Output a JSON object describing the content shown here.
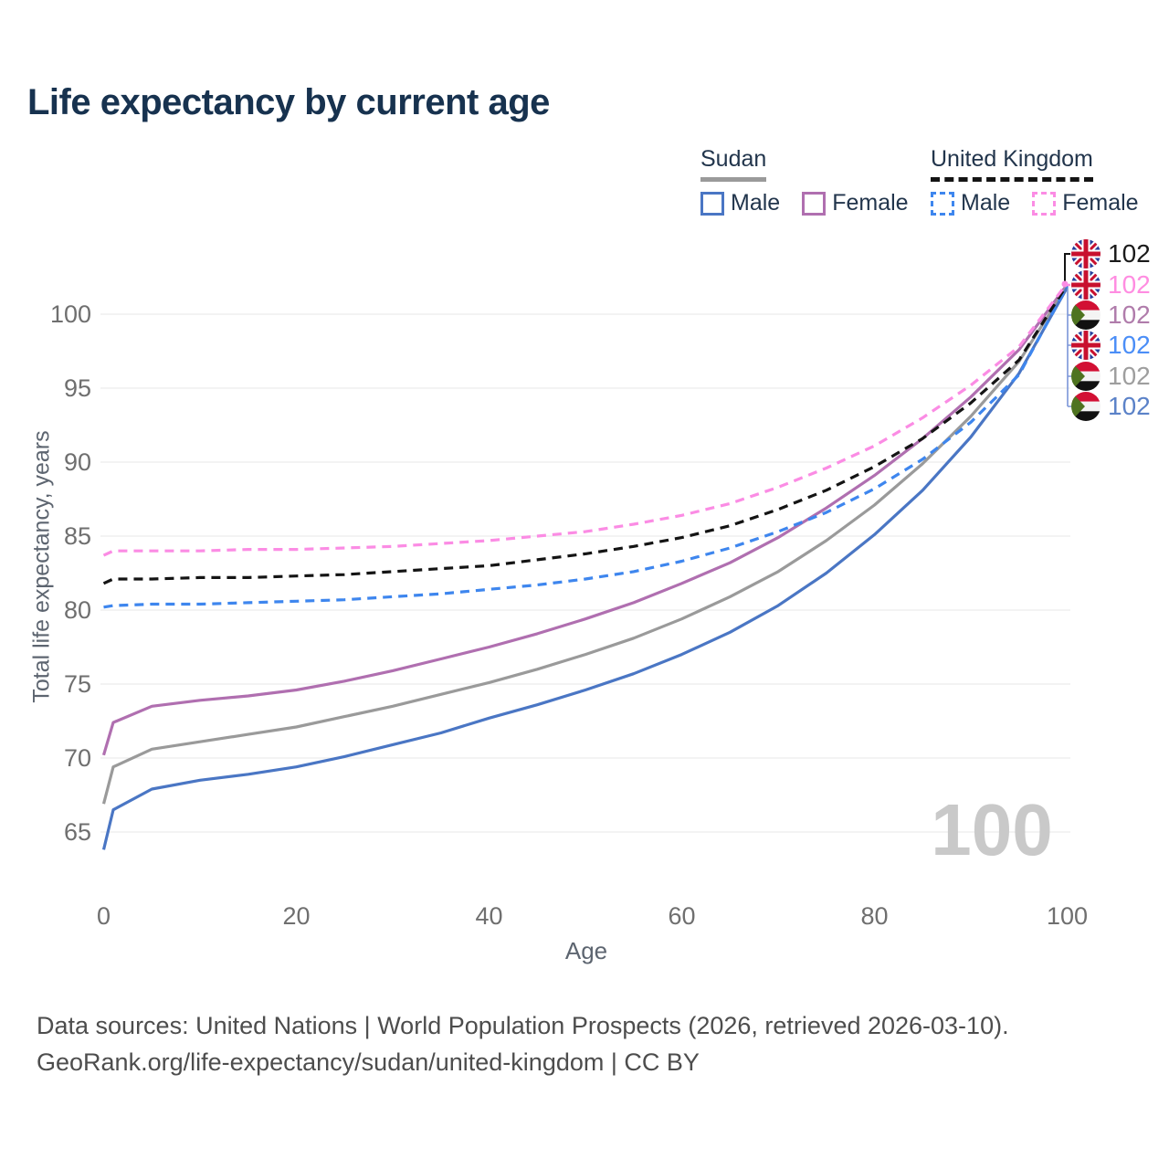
{
  "title": "Life expectancy by current age",
  "legend": {
    "groups": [
      {
        "name": "Sudan",
        "line_style": "solid",
        "underline_color": "#9a9a9a",
        "items": [
          {
            "label": "Male",
            "color": "#4a76c4"
          },
          {
            "label": "Female",
            "color": "#b06fb0"
          }
        ]
      },
      {
        "name": "United Kingdom",
        "line_style": "dashed",
        "underline_color": "#141414",
        "items": [
          {
            "label": "Male",
            "color": "#3e86ee"
          },
          {
            "label": "Female",
            "color": "#fb8ce4"
          }
        ]
      }
    ]
  },
  "watermark": "100",
  "footer": {
    "line1": "Data sources: United Nations | World Population Prospects (2026, retrieved 2026-03-10).",
    "line2": "GeoRank.org/life-expectancy/sudan/united-kingdom | CC BY"
  },
  "chart_data": {
    "type": "line",
    "title": "Life expectancy by current age",
    "xlabel": "Age",
    "ylabel": "Total life expectancy, years",
    "x_ticks": [
      0,
      20,
      40,
      60,
      80,
      100
    ],
    "y_ticks": [
      65,
      70,
      75,
      80,
      85,
      90,
      95,
      100
    ],
    "xlim": [
      0,
      100
    ],
    "ylim": [
      62,
      104
    ],
    "grid": "horizontal",
    "legend_position": "top-right",
    "x": [
      0,
      1,
      5,
      10,
      15,
      20,
      25,
      30,
      35,
      40,
      45,
      50,
      55,
      60,
      65,
      70,
      75,
      80,
      85,
      90,
      95,
      100
    ],
    "series": [
      {
        "name": "Sudan Female",
        "country": "Sudan",
        "sex": "female",
        "color": "#b06fb0",
        "dash": "solid",
        "values": [
          70.2,
          72.4,
          73.5,
          73.9,
          74.2,
          74.6,
          75.2,
          75.9,
          76.7,
          77.5,
          78.4,
          79.4,
          80.5,
          81.8,
          83.2,
          84.9,
          86.9,
          89.1,
          91.6,
          94.4,
          97.6,
          102.0
        ]
      },
      {
        "name": "Sudan Both sexes",
        "country": "Sudan",
        "sex": "both",
        "color": "#9a9a9a",
        "dash": "solid",
        "values": [
          66.9,
          69.4,
          70.6,
          71.1,
          71.6,
          72.1,
          72.8,
          73.5,
          74.3,
          75.1,
          76.0,
          77.0,
          78.1,
          79.4,
          80.9,
          82.6,
          84.7,
          87.1,
          89.9,
          93.1,
          96.8,
          101.9
        ]
      },
      {
        "name": "Sudan Male",
        "country": "Sudan",
        "sex": "male",
        "color": "#4a76c4",
        "dash": "solid",
        "values": [
          63.8,
          66.5,
          67.9,
          68.5,
          68.9,
          69.4,
          70.1,
          70.9,
          71.7,
          72.7,
          73.6,
          74.6,
          75.7,
          77.0,
          78.5,
          80.3,
          82.5,
          85.1,
          88.1,
          91.7,
          96.0,
          101.8
        ]
      },
      {
        "name": "United Kingdom Male",
        "country": "United Kingdom",
        "sex": "male",
        "color": "#3e86ee",
        "dash": "dashed",
        "values": [
          80.2,
          80.3,
          80.4,
          80.4,
          80.5,
          80.6,
          80.7,
          80.9,
          81.1,
          81.4,
          81.7,
          82.1,
          82.6,
          83.3,
          84.2,
          85.3,
          86.6,
          88.2,
          90.2,
          92.7,
          95.9,
          101.9
        ]
      },
      {
        "name": "United Kingdom Both sexes",
        "country": "United Kingdom",
        "sex": "both",
        "color": "#141414",
        "dash": "dashed",
        "values": [
          81.8,
          82.1,
          82.1,
          82.2,
          82.2,
          82.3,
          82.4,
          82.6,
          82.8,
          83.0,
          83.4,
          83.8,
          84.3,
          84.9,
          85.7,
          86.8,
          88.1,
          89.7,
          91.6,
          94.0,
          96.9,
          102.0
        ]
      },
      {
        "name": "United Kingdom Female",
        "country": "United Kingdom",
        "sex": "female",
        "color": "#fb8ce4",
        "dash": "dashed",
        "values": [
          83.7,
          84.0,
          84.0,
          84.0,
          84.1,
          84.1,
          84.2,
          84.3,
          84.5,
          84.7,
          85.0,
          85.3,
          85.8,
          86.4,
          87.2,
          88.3,
          89.6,
          91.1,
          93.0,
          95.2,
          97.8,
          102.1
        ]
      }
    ],
    "end_labels": [
      {
        "flag": "uk",
        "value": "102",
        "color": "#1a1a1a",
        "series": "United Kingdom Both sexes"
      },
      {
        "flag": "uk",
        "value": "102",
        "color": "#ff8de1",
        "series": "United Kingdom Female"
      },
      {
        "flag": "sudan",
        "value": "102",
        "color": "#b07cab",
        "series": "Sudan Female"
      },
      {
        "flag": "uk",
        "value": "102",
        "color": "#4b8ef7",
        "series": "United Kingdom Male"
      },
      {
        "flag": "sudan",
        "value": "102",
        "color": "#9e9e9e",
        "series": "Sudan Both sexes"
      },
      {
        "flag": "sudan",
        "value": "102",
        "color": "#5b82c8",
        "series": "Sudan Male"
      }
    ]
  }
}
